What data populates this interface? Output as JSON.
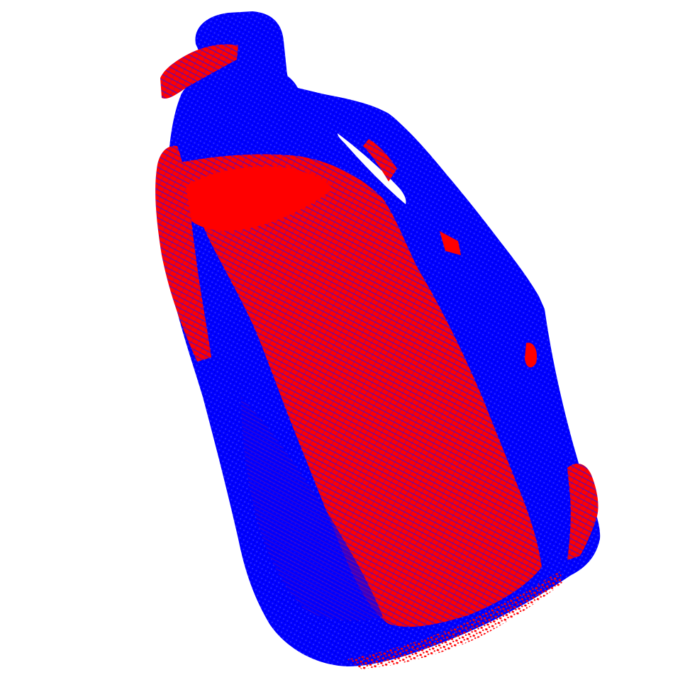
{
  "scene": {
    "background_color": "#ffffff",
    "point_clouds": [
      {
        "id": "model-cloud",
        "color": "#0000ff"
      },
      {
        "id": "observed-cloud",
        "color": "#ff0000"
      }
    ]
  }
}
